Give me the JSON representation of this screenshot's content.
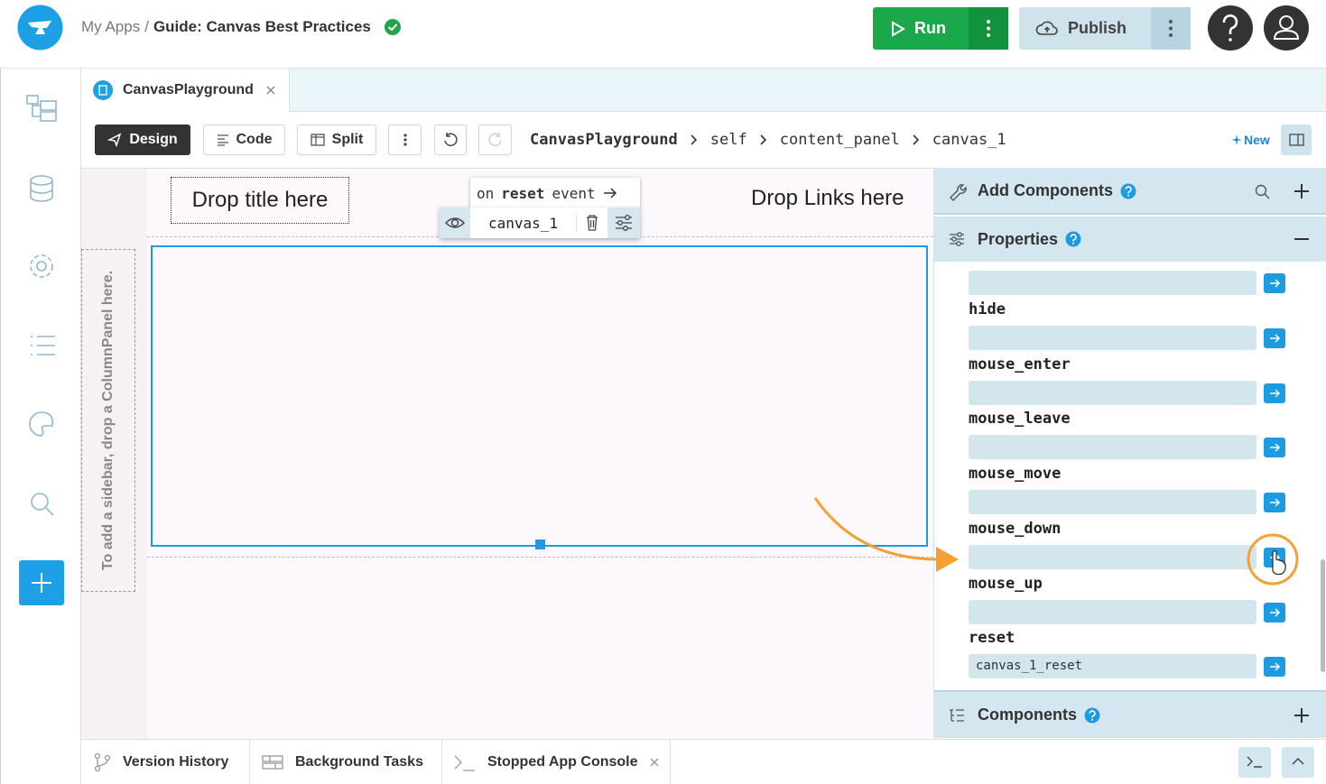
{
  "header": {
    "breadcrumb_root": "My Apps",
    "separator": "/",
    "app_title": "Guide: Canvas Best Practices",
    "run": "Run",
    "publish": "Publish"
  },
  "tab": {
    "label": "CanvasPlayground"
  },
  "toolbar": {
    "design": "Design",
    "code": "Code",
    "split": "Split",
    "path": [
      "CanvasPlayground",
      "self",
      "content_panel",
      "canvas_1"
    ],
    "new": "New"
  },
  "canvas": {
    "drop_title": "Drop title here",
    "drop_links": "Drop Links here",
    "sidebar_hint": "To add a sidebar, drop a ColumnPanel here.",
    "popup_event": [
      "on",
      "reset",
      "event"
    ],
    "component_name": "canvas_1"
  },
  "panel": {
    "add_components": "Add Components",
    "properties": "Properties",
    "components": "Components",
    "events": [
      {
        "name": "hide"
      },
      {
        "name": "mouse_enter"
      },
      {
        "name": "mouse_leave"
      },
      {
        "name": "mouse_move"
      },
      {
        "name": "mouse_down"
      },
      {
        "name": "mouse_up"
      },
      {
        "name": "reset",
        "handler": "canvas_1_reset"
      }
    ]
  },
  "bottom_bar": {
    "tabs": [
      "Version History",
      "Background Tasks",
      "Stopped App Console"
    ]
  }
}
